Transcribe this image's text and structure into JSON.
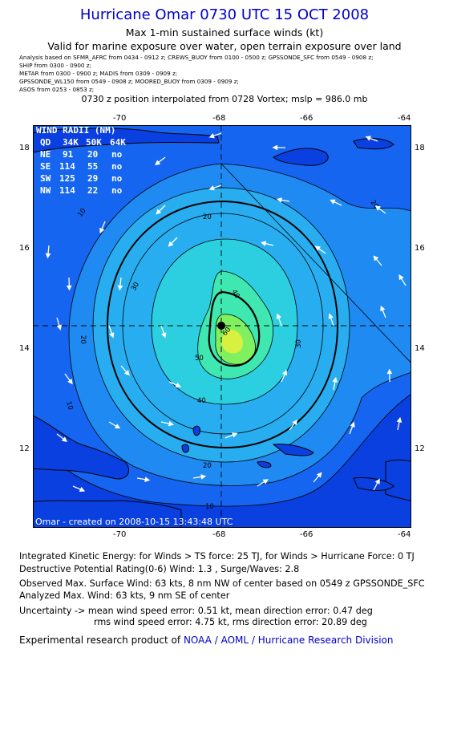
{
  "header": {
    "title": "Hurricane Omar 0730 UTC 15 OCT 2008",
    "subtitle1": "Max 1-min sustained surface winds (kt)",
    "subtitle2": "Valid for marine exposure over water, open terrain exposure over land"
  },
  "analysis_lines": [
    "Analysis based on  SFMR_AFRC from 0434 - 0912 z;  CREWS_BUOY from 0100 - 0500 z;  GPSSONDE_SFC from 0549 - 0908 z;",
    "SHIP from 0300 - 0900 z;",
    "METAR from 0300 - 0900 z;   MADIS from 0309 - 0909 z;",
    "GPSSONDE_WL150 from 0549 - 0908 z;  MOORED_BUOY from 0309 - 0909 z;",
    "ASOS from 0253 - 0853 z;"
  ],
  "position_line": "0730 z position interpolated from 0728 Vortex; mslp = 986.0 mb",
  "map": {
    "lon_ticks": [
      "-70",
      "-68",
      "-66",
      "-64"
    ],
    "lat_ticks": [
      "18",
      "16",
      "14",
      "12"
    ],
    "contour_labels": [
      "10",
      "20",
      "30",
      "40",
      "50",
      "60"
    ],
    "colors": {
      "c0": "#0a3fe0",
      "c10": "#1565f0",
      "c20": "#1e8af2",
      "c30": "#28aef0",
      "c40": "#2ccfe0",
      "c50": "#3ee8b0",
      "c60": "#80f060",
      "c70": "#d8f040"
    },
    "credit": "Omar - created on 2008-10-15 13:43:48 UTC",
    "wind_radii": {
      "title": "WIND RADII (NM)",
      "header": [
        "QD",
        "34K",
        "50K",
        "64K"
      ],
      "rows": [
        [
          "NE",
          "91",
          "20",
          "no"
        ],
        [
          "SE",
          "114",
          "55",
          "no"
        ],
        [
          "SW",
          "125",
          "29",
          "no"
        ],
        [
          "NW",
          "114",
          "22",
          "no"
        ]
      ]
    }
  },
  "footer": {
    "ike": "Integrated Kinetic Energy:  for Winds > TS force: 25 TJ,  for Winds > Hurricane Force: 0 TJ",
    "dpr": "Destructive Potential Rating(0-6)   Wind: 1.3 , Surge/Waves: 2.8",
    "observed": "Observed Max. Surface Wind: 63 kts, 8 nm NW of center based on 0549 z GPSSONDE_SFC",
    "analyzed": "Analyzed Max. Wind: 63 kts, 9 nm SE of center",
    "unc1": "Uncertainty -> mean wind speed error: 0.51 kt,   mean direction error: 0.47 deg",
    "unc2": "rms wind speed error: 4.75 kt,   rms direction error: 20.89 deg",
    "product_prefix": "Experimental research product of",
    "product_link": "NOAA / AOML / Hurricane Research Division"
  }
}
